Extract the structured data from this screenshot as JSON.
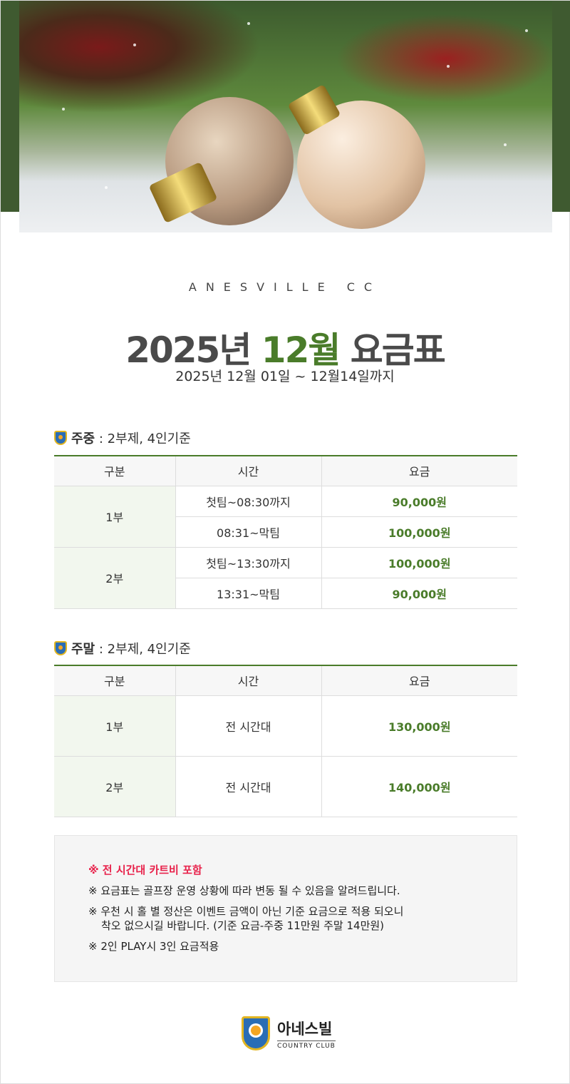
{
  "brand": "ANESVILLE CC",
  "title": {
    "year": "2025년",
    "month": "12월",
    "suffix": "요금표"
  },
  "period": "2025년 12월 01일 ~ 12월14일까지",
  "colors": {
    "accent": "#4a7c2a",
    "notice": "#e8214a",
    "banner_side": "#3f5a30"
  },
  "weekday": {
    "label": "주중",
    "desc": " : 2부제, 4인기준",
    "headers": [
      "구분",
      "시간",
      "요금"
    ],
    "rows": [
      {
        "part": "1부",
        "slots": [
          {
            "time": "첫팀~08:30까지",
            "price": "90,000원"
          },
          {
            "time": "08:31~막팀",
            "price": "100,000원"
          }
        ]
      },
      {
        "part": "2부",
        "slots": [
          {
            "time": "첫팀~13:30까지",
            "price": "100,000원"
          },
          {
            "time": "13:31~막팀",
            "price": "90,000원"
          }
        ]
      }
    ]
  },
  "weekend": {
    "label": "주말",
    "desc": " : 2부제, 4인기준",
    "headers": [
      "구분",
      "시간",
      "요금"
    ],
    "rows": [
      {
        "part": "1부",
        "time": "전 시간대",
        "price": "130,000원"
      },
      {
        "part": "2부",
        "time": "전 시간대",
        "price": "140,000원"
      }
    ]
  },
  "notes": {
    "highlight": "※ 전 시간대 카트비 포함",
    "items": [
      "※ 요금표는 골프장 운영 상황에 따라 변동 될 수 있음을 알려드립니다.",
      "※ 우천 시 홀 별 정산은 이벤트 금액이 아닌 기준 요금으로 적용 되오니",
      "착오 없으시길 바랍니다. (기준 요금-주중 11만원 주말 14만원)",
      "※ 2인 PLAY시 3인 요금적용"
    ]
  },
  "logo": {
    "name": "아네스빌",
    "sub": "COUNTRY CLUB"
  }
}
